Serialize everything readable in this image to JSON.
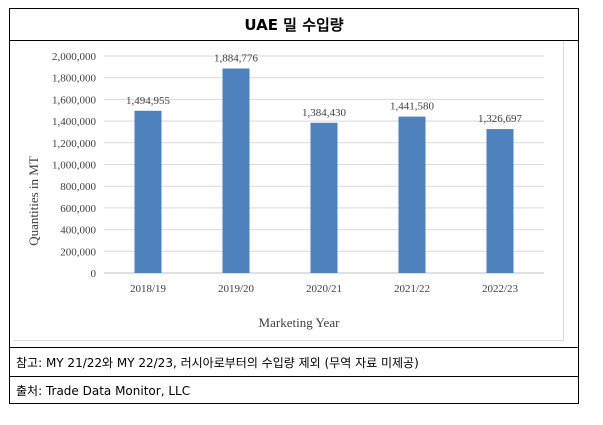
{
  "table": {
    "title": "UAE 밀 수입량",
    "note": "참고: MY 21/22와 MY 22/23, 러시아로부터의 수입량 제외 (무역 자료 미제공)",
    "source": "출처: Trade Data Monitor, LLC"
  },
  "chart_data": {
    "type": "bar",
    "title": "",
    "xlabel": "Marketing Year",
    "ylabel": "Quantities in MT",
    "categories": [
      "2018/19",
      "2019/20",
      "2020/21",
      "2021/22",
      "2022/23"
    ],
    "values": [
      1494955,
      1884776,
      1384430,
      1441580,
      1326697
    ],
    "data_labels": [
      "1,494,955",
      "1,884,776",
      "1,384,430",
      "1,441,580",
      "1,326,697"
    ],
    "ylim": [
      0,
      2000000
    ],
    "yticks": [
      0,
      200000,
      400000,
      600000,
      800000,
      1000000,
      1200000,
      1400000,
      1600000,
      1800000,
      2000000
    ],
    "ytick_labels": [
      "0",
      "200,000",
      "400,000",
      "600,000",
      "800,000",
      "1,000,000",
      "1,200,000",
      "1,400,000",
      "1,600,000",
      "1,800,000",
      "2,000,000"
    ],
    "bar_color": "#4f81bd",
    "grid": true,
    "legend": "none"
  }
}
